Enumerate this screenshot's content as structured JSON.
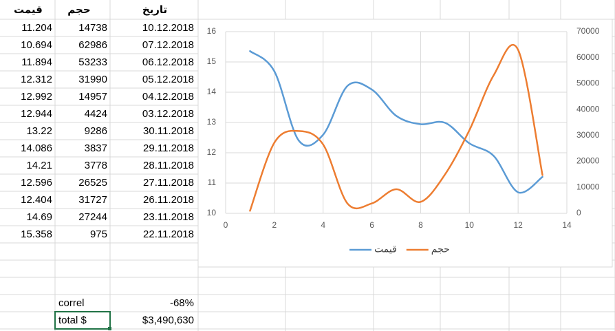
{
  "sheet": {
    "header": [
      "قیمت",
      "حجم",
      "تاریخ"
    ],
    "rows": [
      [
        11.204,
        14738,
        "10.12.2018"
      ],
      [
        10.694,
        62986,
        "07.12.2018"
      ],
      [
        11.894,
        53233,
        "06.12.2018"
      ],
      [
        12.312,
        31990,
        "05.12.2018"
      ],
      [
        12.992,
        14957,
        "04.12.2018"
      ],
      [
        12.944,
        4424,
        "03.12.2018"
      ],
      [
        13.22,
        9286,
        "30.11.2018"
      ],
      [
        14.086,
        3837,
        "29.11.2018"
      ],
      [
        14.21,
        3778,
        "28.11.2018"
      ],
      [
        12.596,
        26525,
        "27.11.2018"
      ],
      [
        12.404,
        31727,
        "26.11.2018"
      ],
      [
        14.69,
        27244,
        "23.11.2018"
      ],
      [
        15.358,
        975,
        "22.11.2018"
      ]
    ],
    "summary": [
      [
        "correl",
        "-68%"
      ],
      [
        "total $",
        "$3,490,630"
      ]
    ]
  },
  "chart_data": {
    "type": "line",
    "smooth": true,
    "x": [
      1,
      2,
      3,
      4,
      5,
      6,
      7,
      8,
      9,
      10,
      11,
      12,
      13
    ],
    "series": [
      {
        "name": "قیمت",
        "color": "#5b9bd5",
        "axis": "y",
        "values": [
          15.358,
          14.69,
          12.404,
          12.596,
          14.21,
          14.086,
          13.22,
          12.944,
          12.992,
          12.312,
          11.894,
          10.694,
          11.204
        ]
      },
      {
        "name": "حجم",
        "color": "#ed7d31",
        "axis": "y2",
        "values": [
          975,
          27244,
          31727,
          26525,
          3778,
          3837,
          9286,
          4424,
          14957,
          31990,
          53233,
          62986,
          14738
        ]
      }
    ],
    "xlim": [
      0,
      14
    ],
    "xticks": [
      0,
      2,
      4,
      6,
      8,
      10,
      12,
      14
    ],
    "ylim": [
      10,
      16
    ],
    "yticks": [
      10,
      11,
      12,
      13,
      14,
      15,
      16
    ],
    "y2lim": [
      0,
      70000
    ],
    "y2ticks": [
      0,
      10000,
      20000,
      30000,
      40000,
      50000,
      60000,
      70000
    ],
    "grid": true,
    "legend": "bottom"
  }
}
